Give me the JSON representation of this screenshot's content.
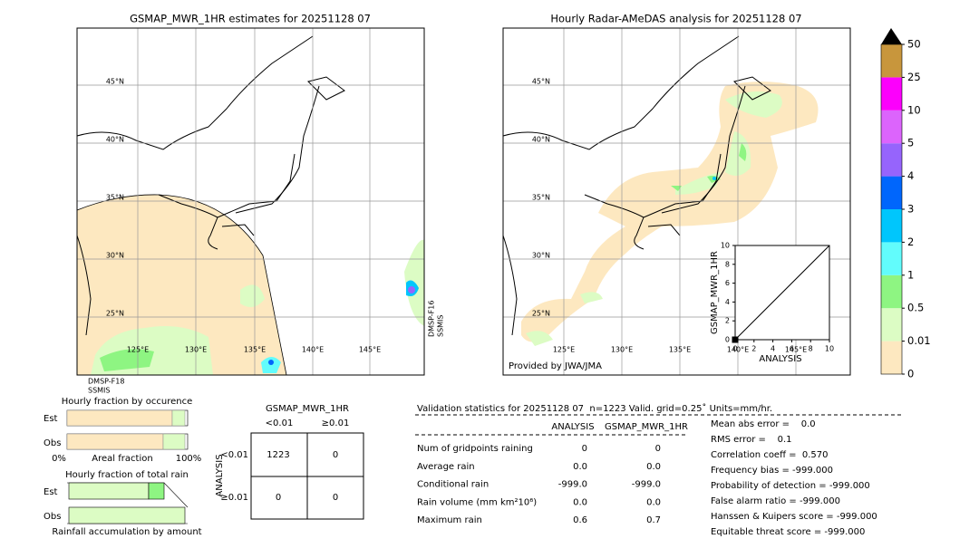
{
  "left_map": {
    "title": "GSMAP_MWR_1HR estimates for 20251128 07",
    "lat_labels": [
      "45°N",
      "40°N",
      "35°N",
      "30°N",
      "25°N"
    ],
    "lon_labels": [
      "125°E",
      "130°E",
      "135°E",
      "140°E",
      "145°E"
    ],
    "sensor_bottom": [
      "DMSP-F18",
      "SSMIS"
    ],
    "sensor_right": [
      "DMSP-F16",
      "SSMIS"
    ]
  },
  "right_map": {
    "title": "Hourly Radar-AMeDAS analysis for 20251128 07",
    "lat_labels": [
      "45°N",
      "40°N",
      "35°N",
      "30°N",
      "25°N"
    ],
    "lon_labels": [
      "125°E",
      "130°E",
      "135°E",
      "140°E",
      "145°E"
    ],
    "credit": "Provided by JWA/JMA",
    "inset": {
      "xlabel": "ANALYSIS",
      "ylabel": "GSMAP_MWR_1HR",
      "ticks": [
        0,
        2,
        4,
        6,
        8,
        10
      ],
      "lim": [
        0,
        10
      ],
      "points_x": [
        0
      ],
      "points_y": [
        0
      ]
    }
  },
  "colorbar": {
    "labels": [
      "0",
      "0.01",
      "0.5",
      "1",
      "2",
      "3",
      "4",
      "5",
      "10",
      "25",
      "50"
    ],
    "colors": [
      "#fde8c0",
      "#dcfcc4",
      "#8ef582",
      "#62fcfc",
      "#00c6fc",
      "#0066fc",
      "#9664fc",
      "#dc64fc",
      "#fc00fc",
      "#c8963c"
    ]
  },
  "fraction_occurrence": {
    "title": "Hourly fraction by occurence",
    "rows": [
      "Est",
      "Obs"
    ],
    "axis": [
      "0%",
      "Areal fraction",
      "100%"
    ]
  },
  "fraction_amount": {
    "title": "Hourly fraction of total rain",
    "rows": [
      "Est",
      "Obs"
    ],
    "footer": "Rainfall accumulation by amount"
  },
  "contingency": {
    "title": "GSMAP_MWR_1HR",
    "col_headers": [
      "<0.01",
      "≥0.01"
    ],
    "row_label": "ANALYSIS",
    "row_headers": [
      "<0.01",
      "≥0.01"
    ],
    "cells": [
      [
        "1223",
        "0"
      ],
      [
        "0",
        "0"
      ]
    ]
  },
  "validation": {
    "header": "Validation statistics for 20251128 07  n=1223 Valid. grid=0.25˚ Units=mm/hr.",
    "col_headers": [
      "ANALYSIS",
      "GSMAP_MWR_1HR"
    ],
    "rows": [
      [
        "Num of gridpoints raining",
        "0",
        "0"
      ],
      [
        "Average rain",
        "0.0",
        "0.0"
      ],
      [
        "Conditional rain",
        "-999.0",
        "-999.0"
      ],
      [
        "Rain volume (mm km²10⁶)",
        "0.0",
        "0.0"
      ],
      [
        "Maximum rain",
        "0.6",
        "0.7"
      ]
    ],
    "scores": [
      "Mean abs error =    0.0",
      "RMS error =    0.1",
      "Correlation coeff =  0.570",
      "Frequency bias = -999.000",
      "Probability of detection = -999.000",
      "False alarm ratio = -999.000",
      "Hanssen & Kuipers score = -999.000",
      "Equitable threat score = -999.000"
    ]
  }
}
